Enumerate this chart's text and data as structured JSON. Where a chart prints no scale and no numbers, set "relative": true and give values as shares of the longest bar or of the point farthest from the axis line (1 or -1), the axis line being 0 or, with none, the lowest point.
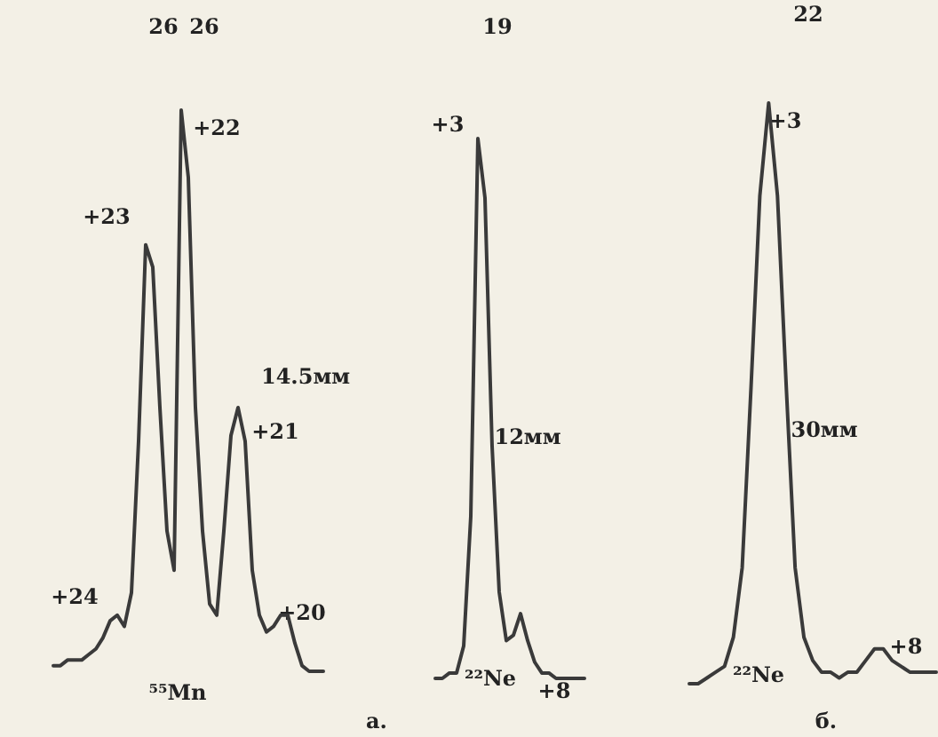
{
  "chart_data": [
    {
      "type": "line",
      "relative": true,
      "color": "#3a3a3a",
      "line_style": "solid",
      "categories": [
        null,
        null,
        null,
        null,
        null,
        null,
        null,
        null,
        null,
        null,
        null,
        null,
        null,
        null,
        null,
        null,
        null,
        null,
        null,
        null,
        null,
        null,
        null,
        null,
        null,
        null,
        null,
        null,
        null,
        null,
        null,
        null,
        null,
        null,
        null,
        null,
        null,
        null,
        null
      ],
      "values": [
        0.01,
        0.01,
        0.02,
        0.02,
        0.02,
        0.03,
        0.04,
        0.06,
        0.09,
        0.1,
        0.08,
        0.14,
        0.41,
        0.76,
        0.72,
        0.47,
        0.25,
        0.18,
        1,
        0.88,
        0.47,
        0.25,
        0.12,
        0.1,
        0.25,
        0.42,
        0.47,
        0.41,
        0.18,
        0.1,
        0.07,
        0.08,
        0.1,
        0.1,
        0.05,
        0.01,
        0,
        0,
        0
      ],
      "annotations": [
        "26",
        "26",
        "+22",
        "+23",
        "14.5мм",
        "+21",
        "+24",
        "+20",
        "⁵⁵Mn"
      ]
    },
    {
      "type": "line",
      "relative": true,
      "color": "#3a3a3a",
      "line_style": "solid",
      "categories": [
        null,
        null,
        null,
        null,
        null,
        null,
        null,
        null,
        null,
        null,
        null,
        null,
        null,
        null,
        null,
        null,
        null,
        null,
        null,
        null,
        null,
        null
      ],
      "values": [
        0,
        0,
        0.01,
        0.01,
        0.06,
        0.3,
        1,
        0.89,
        0.43,
        0.16,
        0.07,
        0.08,
        0.12,
        0.07,
        0.03,
        0.01,
        0.01,
        0,
        0,
        0,
        0,
        0
      ],
      "annotations": [
        "19",
        "+3",
        "12мм",
        "²²Ne",
        "+8",
        "a."
      ]
    },
    {
      "type": "line",
      "relative": true,
      "color": "#3a3a3a",
      "line_style": "solid",
      "categories": [
        null,
        null,
        null,
        null,
        null,
        null,
        null,
        null,
        null,
        null,
        null,
        null,
        null,
        null,
        null,
        null,
        null,
        null,
        null,
        null,
        null,
        null,
        null,
        null,
        null,
        null,
        null,
        null,
        null
      ],
      "values": [
        0,
        0,
        0.01,
        0.02,
        0.03,
        0.08,
        0.2,
        0.51,
        0.84,
        1,
        0.84,
        0.51,
        0.2,
        0.08,
        0.04,
        0.02,
        0.02,
        0.01,
        0.02,
        0.02,
        0.04,
        0.06,
        0.06,
        0.04,
        0.03,
        0.02,
        0.02,
        0.02,
        0.02
      ],
      "annotations": [
        "22",
        "+3",
        "30мм",
        "²²Ne",
        "+8",
        "б."
      ]
    }
  ]
}
